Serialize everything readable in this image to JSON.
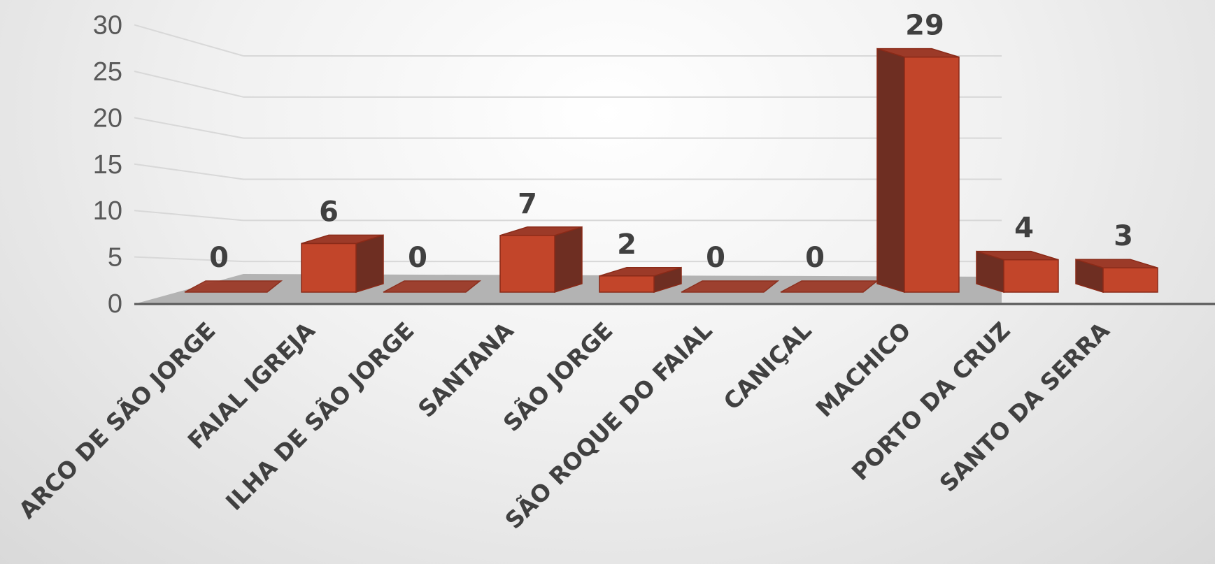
{
  "chart_data": {
    "type": "bar",
    "style": "3d-column",
    "categories": [
      "ARCO DE SÃO JORGE",
      "FAIAL IGREJA",
      "ILHA DE SÃO JORGE",
      "SANTANA",
      "SÃO JORGE",
      "SÃO ROQUE DO FAIAL",
      "CANIÇAL",
      "MACHICO",
      "PORTO DA CRUZ",
      "SANTO DA SERRA"
    ],
    "values": [
      0,
      6,
      0,
      7,
      2,
      0,
      0,
      29,
      4,
      3
    ],
    "data_labels": [
      "0",
      "6",
      "0",
      "7",
      "2",
      "0",
      "0",
      "29",
      "4",
      "3"
    ],
    "title": "",
    "xlabel": "",
    "ylabel": "",
    "ylim": [
      0,
      30
    ],
    "yticks": [
      "0",
      "5",
      "10",
      "15",
      "20",
      "25",
      "30"
    ],
    "grid": true,
    "legend": "none",
    "colors": {
      "bar_front": "#c2452a",
      "bar_side": "#6e2e22",
      "bar_top": "#9c3a28",
      "bar_edge": "#8a2a18",
      "floor": "#b3b3b3",
      "grid": "#d8d8d8",
      "axis": "#595959"
    }
  }
}
